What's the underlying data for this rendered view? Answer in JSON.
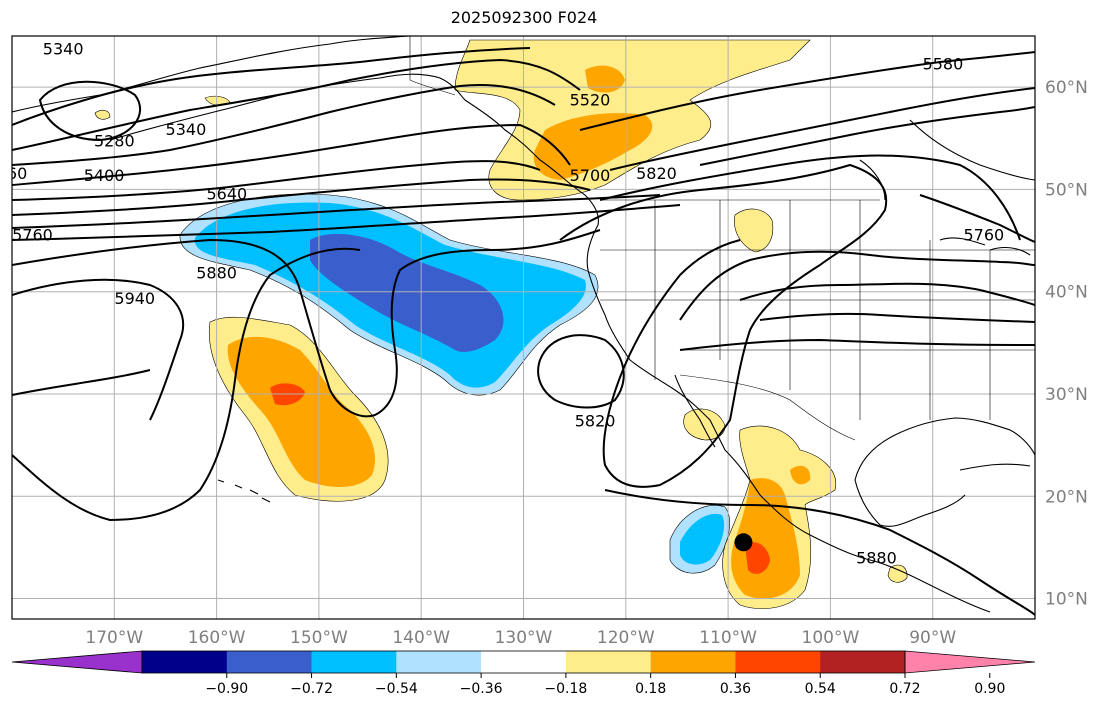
{
  "title": "2025092300 F024",
  "map": {
    "lon_range": [
      -180,
      -80
    ],
    "lat_range": [
      8,
      65
    ],
    "lat_ticks": [
      {
        "value": 10,
        "label": "10°N"
      },
      {
        "value": 20,
        "label": "20°N"
      },
      {
        "value": 30,
        "label": "30°N"
      },
      {
        "value": 40,
        "label": "40°N"
      },
      {
        "value": 50,
        "label": "50°N"
      },
      {
        "value": 60,
        "label": "60°N"
      }
    ],
    "lon_ticks": [
      {
        "value": -170,
        "label": "170°W"
      },
      {
        "value": -160,
        "label": "160°W"
      },
      {
        "value": -150,
        "label": "150°W"
      },
      {
        "value": -140,
        "label": "140°W"
      },
      {
        "value": -130,
        "label": "130°W"
      },
      {
        "value": -120,
        "label": "120°W"
      },
      {
        "value": -110,
        "label": "110°W"
      },
      {
        "value": -100,
        "label": "100°W"
      },
      {
        "value": -90,
        "label": "90°W"
      }
    ],
    "grid": true,
    "marker": {
      "lon": -108.5,
      "lat": 15.5,
      "color": "#000000"
    }
  },
  "contour_labels": [
    {
      "text": "5340",
      "lon": -175,
      "lat": 63.7
    },
    {
      "text": "5280",
      "lon": -170,
      "lat": 54.7
    },
    {
      "text": "5340",
      "lon": -163,
      "lat": 55.8
    },
    {
      "text": "60",
      "lon": -179.5,
      "lat": 51.5
    },
    {
      "text": "5400",
      "lon": -171,
      "lat": 51.3
    },
    {
      "text": "5640",
      "lon": -159,
      "lat": 49.5
    },
    {
      "text": "5760",
      "lon": -178,
      "lat": 45.5
    },
    {
      "text": "5880",
      "lon": -160,
      "lat": 41.8
    },
    {
      "text": "5940",
      "lon": -168,
      "lat": 39.3
    },
    {
      "text": "5520",
      "lon": -123.5,
      "lat": 58.7
    },
    {
      "text": "5700",
      "lon": -123.5,
      "lat": 51.3
    },
    {
      "text": "5820",
      "lon": -117,
      "lat": 51.5
    },
    {
      "text": "5580",
      "lon": -89,
      "lat": 62.2
    },
    {
      "text": "5760",
      "lon": -85,
      "lat": 45.5
    },
    {
      "text": "5820",
      "lon": -123,
      "lat": 27.3
    },
    {
      "text": "5880",
      "lon": -95.5,
      "lat": 13.9
    }
  ],
  "colorbar": {
    "colors": [
      "#9932cc",
      "#00008b",
      "#3a5fcd",
      "#00bfff",
      "#b0e2ff",
      "#ffffff",
      "#ffec8b",
      "#ffa500",
      "#ff4500",
      "#b22222",
      "#ff82ab"
    ],
    "tick_labels": [
      "−0.90",
      "−0.72",
      "−0.54",
      "−0.36",
      "−0.18",
      "0.18",
      "0.36",
      "0.54",
      "0.72",
      "0.90"
    ],
    "extend": "both"
  }
}
